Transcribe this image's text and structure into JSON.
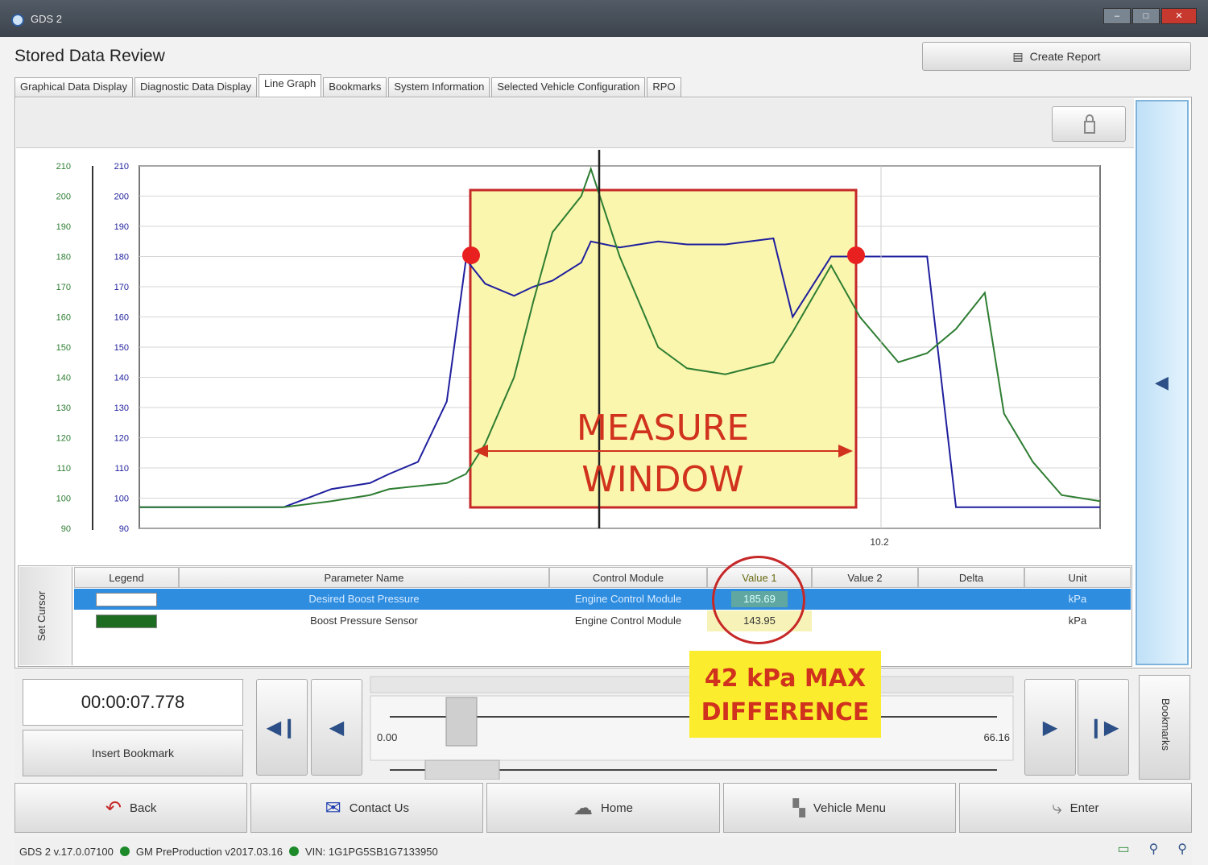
{
  "window": {
    "title": "GDS 2"
  },
  "header": {
    "title": "Stored Data Review",
    "create_report": "Create Report"
  },
  "tabs": [
    {
      "label": "Graphical Data Display"
    },
    {
      "label": "Diagnostic Data Display"
    },
    {
      "label": "Line Graph",
      "active": true
    },
    {
      "label": "Bookmarks"
    },
    {
      "label": "System Information"
    },
    {
      "label": "Selected Vehicle Configuration"
    },
    {
      "label": "RPO"
    }
  ],
  "graph": {
    "cursor_label": "10.2",
    "annotation_measure_line1": "MEASURE",
    "annotation_measure_line2": "WINDOW"
  },
  "chart_data": {
    "type": "line",
    "title": "",
    "xlabel": "",
    "ylabel": "",
    "ylim": [
      90,
      210
    ],
    "yticks": [
      "210",
      "200",
      "190",
      "180",
      "170",
      "160",
      "150",
      "140",
      "130",
      "120",
      "110",
      "100",
      "90"
    ],
    "grid": true,
    "legend": "none",
    "x": [
      0,
      0.09,
      0.15,
      0.2,
      0.24,
      0.26,
      0.29,
      0.32,
      0.34,
      0.36,
      0.39,
      0.41,
      0.43,
      0.46,
      0.47,
      0.5,
      0.54,
      0.57,
      0.61,
      0.66,
      0.68,
      0.72,
      0.75,
      0.79,
      0.82,
      0.85,
      0.88,
      0.9,
      0.93,
      0.96,
      1.0
    ],
    "series": [
      {
        "color": "#1f1f9e",
        "values": [
          97,
          97,
          97,
          103,
          105,
          108,
          112,
          132,
          179,
          171,
          167,
          170,
          172,
          178,
          185,
          183,
          185,
          184,
          184,
          186,
          160,
          180,
          180,
          180,
          180,
          97,
          97,
          97,
          97,
          97,
          97
        ]
      },
      {
        "color": "#2e7d32",
        "values": [
          97,
          97,
          97,
          99,
          101,
          103,
          104,
          105,
          108,
          118,
          140,
          165,
          188,
          200,
          209,
          180,
          150,
          143,
          141,
          145,
          155,
          177,
          160,
          145,
          148,
          156,
          168,
          128,
          112,
          101,
          99
        ]
      }
    ]
  },
  "table": {
    "headers": {
      "legend": "Legend",
      "parameter": "Parameter Name",
      "module": "Control Module",
      "value1": "Value 1",
      "value2": "Value 2",
      "delta": "Delta",
      "unit": "Unit"
    },
    "rows": [
      {
        "legend_color": "#ffffff",
        "parameter": "Desired Boost Pressure",
        "module": "Engine Control Module",
        "value1": "185.69",
        "value2": "",
        "delta": "",
        "unit": "kPa"
      },
      {
        "legend_color": "#1e6b22",
        "parameter": "Boost Pressure Sensor",
        "module": "Engine Control Module",
        "value1": "143.95",
        "value2": "",
        "delta": "",
        "unit": "kPa"
      }
    ],
    "set_cursor": "Set Cursor"
  },
  "playback": {
    "time": "00:00:07.778",
    "insert_bookmark": "Insert Bookmark",
    "slider_min": "0.00",
    "slider_max": "66.16",
    "bookmarks": "Bookmarks"
  },
  "callout": {
    "line1": "42 kPa MAX",
    "line2": "DIFFERENCE"
  },
  "nav": {
    "back": "Back",
    "contact": "Contact Us",
    "home": "Home",
    "vehicle_menu": "Vehicle Menu",
    "enter": "Enter"
  },
  "status": {
    "version": "GDS 2 v.17.0.07100",
    "build": "GM PreProduction v2017.03.16",
    "vin": "VIN: 1G1PG5SB1G7133950"
  }
}
